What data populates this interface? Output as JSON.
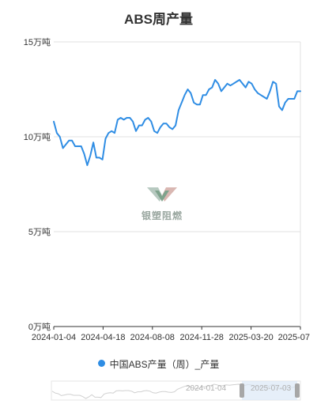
{
  "chart_data": {
    "type": "line",
    "title": "ABS周产量",
    "y_ticks": [
      "0万吨",
      "5万吨",
      "10万吨",
      "15万吨"
    ],
    "ylim": [
      0,
      15
    ],
    "x_ticks": [
      "2024-01-04",
      "2024-04-18",
      "2024-08-08",
      "2024-11-28",
      "2025-03-20",
      "2025-07"
    ],
    "series": [
      {
        "name": "中国ABS产量（周）_产量",
        "color": "#2f8de4",
        "values": [
          10.8,
          10.2,
          10.0,
          9.4,
          9.6,
          9.8,
          9.8,
          9.5,
          9.5,
          9.5,
          9.1,
          8.5,
          9.0,
          9.7,
          8.9,
          8.9,
          8.8,
          9.9,
          10.2,
          10.3,
          10.2,
          10.9,
          11.0,
          10.9,
          11.0,
          11.0,
          10.8,
          10.3,
          10.6,
          10.6,
          10.9,
          11.0,
          10.8,
          10.3,
          10.2,
          10.5,
          10.7,
          10.7,
          10.5,
          10.4,
          10.6,
          11.4,
          11.8,
          12.2,
          12.5,
          12.3,
          11.8,
          11.7,
          11.7,
          12.2,
          12.2,
          12.5,
          12.6,
          13.0,
          12.8,
          12.4,
          12.6,
          12.8,
          12.7,
          12.8,
          12.9,
          13.0,
          12.8,
          12.6,
          12.9,
          12.8,
          12.5,
          12.3,
          12.2,
          12.1,
          12.0,
          12.4,
          12.9,
          12.8,
          11.6,
          11.4,
          11.8,
          12.0,
          12.0,
          12.0,
          12.4,
          12.4
        ]
      }
    ],
    "grid": true,
    "legend": "bottom"
  },
  "watermark": {
    "text": "银塑阻燃"
  },
  "data_zoom": {
    "start_label": "2024-01-04",
    "end_label": "2025-07-03"
  },
  "colors": {
    "line": "#2f8de4",
    "grid": "#e0e0e0",
    "axis": "#333333"
  }
}
